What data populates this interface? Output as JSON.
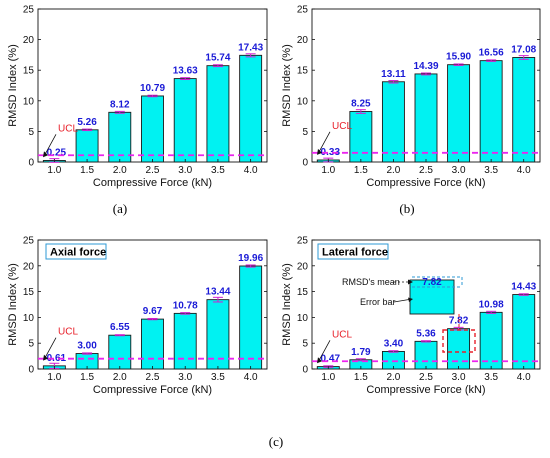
{
  "figure": {
    "colors": {
      "bar": "#00f2f2",
      "bar_edge": "#1a1a1a",
      "error": "#d11fd1",
      "ucl": "#ee22ee",
      "label": "#1a1ad6",
      "ucl_text": "#e8202a",
      "box_edge": "#2e9ad6"
    },
    "subfigure_labels": [
      "(a)",
      "(b)",
      "(c)"
    ],
    "callout": {
      "mean_label": "RMSD's mean",
      "error_label": "Error bar",
      "value_label": "7.82"
    }
  },
  "chart_data": [
    {
      "type": "bar",
      "panel": "(a)",
      "title": "",
      "categories": [
        "1.0",
        "1.5",
        "2.0",
        "2.5",
        "3.0",
        "3.5",
        "4.0"
      ],
      "values": [
        0.25,
        5.26,
        8.12,
        10.79,
        13.63,
        15.74,
        17.43
      ],
      "value_labels": [
        "0.25",
        "5.26",
        "8.12",
        "10.79",
        "13.63",
        "15.74",
        "17.43"
      ],
      "errors": [
        0.3,
        0.12,
        0.15,
        0.12,
        0.15,
        0.15,
        0.25
      ],
      "ucl": 1.1,
      "ucl_label": "UCL",
      "xlabel": "Compressive Force (kN)",
      "ylabel": "RMSD Index (%)",
      "ylim": [
        0,
        25
      ],
      "yticks": [
        0,
        5,
        10,
        15,
        20,
        25
      ],
      "grid": false,
      "legend": "none"
    },
    {
      "type": "bar",
      "panel": "(b)",
      "title": "",
      "categories": [
        "1.0",
        "1.5",
        "2.0",
        "2.5",
        "3.0",
        "3.5",
        "4.0"
      ],
      "values": [
        0.33,
        8.25,
        13.11,
        14.39,
        15.9,
        16.56,
        17.08
      ],
      "value_labels": [
        "0.33",
        "8.25",
        "13.11",
        "14.39",
        "15.90",
        "16.56",
        "17.08"
      ],
      "errors": [
        0.3,
        0.3,
        0.2,
        0.15,
        0.12,
        0.12,
        0.3
      ],
      "ucl": 1.5,
      "ucl_label": "UCL",
      "xlabel": "Compressive Force (kN)",
      "ylabel": "RMSD Index (%)",
      "ylim": [
        0,
        25
      ],
      "yticks": [
        0,
        5,
        10,
        15,
        20,
        25
      ],
      "grid": false,
      "legend": "none"
    },
    {
      "type": "bar",
      "panel": "(c) left",
      "title": "Axial force",
      "categories": [
        "1.0",
        "1.5",
        "2.0",
        "2.5",
        "3.0",
        "3.5",
        "4.0"
      ],
      "values": [
        0.61,
        3.0,
        6.55,
        9.67,
        10.78,
        13.44,
        19.96
      ],
      "value_labels": [
        "0.61",
        "3.00",
        "6.55",
        "9.67",
        "10.78",
        "13.44",
        "19.96"
      ],
      "errors": [
        0.5,
        0.12,
        0.1,
        0.12,
        0.15,
        0.45,
        0.2
      ],
      "ucl": 2.0,
      "ucl_label": "UCL",
      "xlabel": "Compressive Force (kN)",
      "ylabel": "RMSD Index (%)",
      "ylim": [
        0,
        25
      ],
      "yticks": [
        0,
        5,
        10,
        15,
        20,
        25
      ],
      "grid": false,
      "legend": "none"
    },
    {
      "type": "bar",
      "panel": "(c) right",
      "title": "Lateral force",
      "categories": [
        "1.0",
        "1.5",
        "2.0",
        "2.5",
        "3.0",
        "3.5",
        "4.0"
      ],
      "values": [
        0.47,
        1.79,
        3.4,
        5.36,
        7.82,
        10.98,
        14.43
      ],
      "value_labels": [
        "0.47",
        "1.79",
        "3.40",
        "5.36",
        "7.82",
        "10.98",
        "14.43"
      ],
      "errors": [
        0.15,
        0.2,
        0.15,
        0.12,
        0.25,
        0.2,
        0.15
      ],
      "ucl": 1.5,
      "ucl_label": "UCL",
      "xlabel": "Compressive Force (kN)",
      "ylabel": "RMSD Index (%)",
      "ylim": [
        0,
        25
      ],
      "yticks": [
        0,
        5,
        10,
        15,
        20,
        25
      ],
      "grid": false,
      "legend": "none"
    }
  ]
}
